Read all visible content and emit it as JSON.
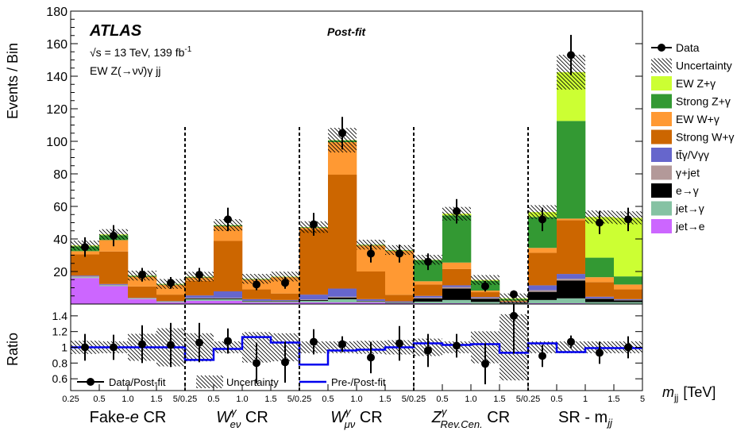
{
  "chart_data": {
    "type": "bar",
    "stacked": true,
    "top_panel": {
      "ylabel": "Events / Bin",
      "ylim": [
        0,
        180
      ],
      "yticks": [
        20,
        40,
        60,
        80,
        100,
        120,
        140,
        160,
        180
      ]
    },
    "ratio_panel": {
      "ylabel": "Ratio",
      "ylim": [
        0.45,
        1.55
      ],
      "yticks": [
        "0.6",
        "0.8",
        "1",
        "1.2",
        "1.4"
      ],
      "yticks_values": [
        0.6,
        0.8,
        1.0,
        1.2,
        1.4
      ],
      "legend": [
        "Data/Post-fit",
        "Uncertainty",
        "Pre-/Post-fit"
      ]
    },
    "annotations": {
      "experiment": "ATLAS",
      "energy": "√s = 13 TeV, 139 fb",
      "lumi_exp": "-1",
      "channel": "EW Z(→νν̄)γ jj",
      "fit_label": "Post-fit"
    },
    "xlabel": "m",
    "xlabel_sub": "jj",
    "xlabel_unit": "[TeV]",
    "x_tick_labels": [
      "0.25",
      "0.5",
      "1.0",
      "1.5",
      "5/0.25",
      "0.5",
      "1.0",
      "1.5",
      "5/0.25",
      "0.5",
      "1.0",
      "1.5",
      "5/0.25",
      "0.5",
      "1.0",
      "1.5",
      "5/0.25",
      "0.5",
      "1",
      "1.5",
      "5"
    ],
    "regions": [
      {
        "name": "Fake-e CR",
        "base": "Fake-",
        "italic": "e",
        "suffix": " CR"
      },
      {
        "name": "Wγ eν CR",
        "base": "W",
        "sup": "γ",
        "sub": "eν",
        "suffix": " CR"
      },
      {
        "name": "Wγ μν CR",
        "base": "W",
        "sup": "γ",
        "sub": "μν",
        "suffix": " CR"
      },
      {
        "name": "Zγ Rev.Cen. CR",
        "base": "Z",
        "sup": "γ",
        "sub": "Rev.Cen.",
        "suffix": " CR"
      },
      {
        "name": "SR - mjj",
        "base": "SR - m",
        "sub": "jj",
        "suffix": ""
      }
    ],
    "series_names": [
      "Data",
      "Uncertainty",
      "EW Z+γ",
      "Strong Z+γ",
      "EW W+γ",
      "Strong W+γ",
      "tt̄γ/Vγγ",
      "γ+jet",
      "e→γ",
      "jet→γ",
      "jet→e"
    ],
    "colors": {
      "ew_z": "#ccff33",
      "strong_z": "#339933",
      "ew_w": "#ff9933",
      "strong_w": "#cc6600",
      "ttg": "#6666cc",
      "gjet": "#b39999",
      "e_to_g": "#000000",
      "jet_to_g": "#85c2a3",
      "jet_to_e": "#cc66ff",
      "prefit_line": "#0000ee"
    },
    "stack_order": [
      "jet_to_e",
      "jet_to_g",
      "e_to_g",
      "gjet",
      "ttg",
      "strong_w",
      "ew_w",
      "strong_z",
      "ew_z"
    ],
    "bins": [
      {
        "jet_to_e": 16,
        "jet_to_g": 0.5,
        "e_to_g": 0,
        "gjet": 0.5,
        "ttg": 0.5,
        "strong_w": 13,
        "ew_w": 2,
        "strong_z": 3,
        "ew_z": 0.5,
        "data": 35,
        "data_err": 6,
        "ratio": 1.0,
        "ratio_err": 0.17,
        "prefit": 1.0
      },
      {
        "jet_to_e": 11,
        "jet_to_g": 0.5,
        "e_to_g": 0,
        "gjet": 0.3,
        "ttg": 0.5,
        "strong_w": 20,
        "ew_w": 7,
        "strong_z": 3,
        "ew_z": 0.5,
        "data": 42,
        "data_err": 6.5,
        "ratio": 1.0,
        "ratio_err": 0.16,
        "prefit": 1.0
      },
      {
        "jet_to_e": 3,
        "jet_to_g": 0.3,
        "e_to_g": 0,
        "gjet": 0.2,
        "ttg": 0.3,
        "strong_w": 7,
        "ew_w": 6,
        "strong_z": 0.5,
        "ew_z": 0.2,
        "data": 18,
        "data_err": 4.2,
        "ratio": 1.04,
        "ratio_err": 0.24,
        "prefit": 1.0
      },
      {
        "jet_to_e": 1,
        "jet_to_g": 0.3,
        "e_to_g": 0,
        "gjet": 0.2,
        "ttg": 0.3,
        "strong_w": 4,
        "ew_w": 6,
        "strong_z": 0.3,
        "ew_z": 0.3,
        "data": 13,
        "data_err": 3.6,
        "ratio": 1.03,
        "ratio_err": 0.28,
        "prefit": 1.0
      },
      {
        "jet_to_e": 2,
        "jet_to_g": 1,
        "e_to_g": 0.5,
        "gjet": 0.3,
        "ttg": 1.5,
        "strong_w": 9,
        "ew_w": 2,
        "strong_z": 0.3,
        "ew_z": 0.2,
        "data": 18,
        "data_err": 4.2,
        "ratio": 1.06,
        "ratio_err": 0.25,
        "prefit": 0.84
      },
      {
        "jet_to_e": 2,
        "jet_to_g": 1,
        "e_to_g": 0.5,
        "gjet": 0.3,
        "ttg": 4,
        "strong_w": 31,
        "ew_w": 9,
        "strong_z": 0.5,
        "ew_z": 0.2,
        "data": 52,
        "data_err": 7.2,
        "ratio": 1.08,
        "ratio_err": 0.16,
        "prefit": 0.98
      },
      {
        "jet_to_e": 1,
        "jet_to_g": 0.5,
        "e_to_g": 0.3,
        "gjet": 0.2,
        "ttg": 1,
        "strong_w": 6,
        "ew_w": 6,
        "strong_z": 0.3,
        "ew_z": 0.2,
        "data": 12,
        "data_err": 3.5,
        "ratio": 0.8,
        "ratio_err": 0.26,
        "prefit": 1.13
      },
      {
        "jet_to_e": 1,
        "jet_to_g": 0.5,
        "e_to_g": 0.3,
        "gjet": 0.2,
        "ttg": 0.5,
        "strong_w": 4,
        "ew_w": 10,
        "strong_z": 0.2,
        "ew_z": 0.2,
        "data": 13,
        "data_err": 3.6,
        "ratio": 0.81,
        "ratio_err": 0.26,
        "prefit": 1.06
      },
      {
        "jet_to_e": 1,
        "jet_to_g": 1,
        "e_to_g": 0.5,
        "gjet": 0.3,
        "ttg": 3,
        "strong_w": 40,
        "ew_w": 1,
        "strong_z": 0.3,
        "ew_z": 0.2,
        "data": 49,
        "data_err": 7,
        "ratio": 1.07,
        "ratio_err": 0.16,
        "prefit": 0.78
      },
      {
        "jet_to_e": 1,
        "jet_to_g": 2,
        "e_to_g": 1,
        "gjet": 0.5,
        "ttg": 5,
        "strong_w": 70,
        "ew_w": 20,
        "strong_z": 1,
        "ew_z": 0.2,
        "data": 105,
        "data_err": 10,
        "ratio": 1.04,
        "ratio_err": 0.1,
        "prefit": 0.96
      },
      {
        "jet_to_e": 1,
        "jet_to_g": 0.5,
        "e_to_g": 0.3,
        "gjet": 0.2,
        "ttg": 1,
        "strong_w": 17,
        "ew_w": 16,
        "strong_z": 0.3,
        "ew_z": 0.2,
        "data": 31,
        "data_err": 5.5,
        "ratio": 0.87,
        "ratio_err": 0.2,
        "prefit": 0.97
      },
      {
        "jet_to_e": 0.5,
        "jet_to_g": 0.3,
        "e_to_g": 0.2,
        "gjet": 0.2,
        "ttg": 0.5,
        "strong_w": 4,
        "ew_w": 27,
        "strong_z": 0.3,
        "ew_z": 0.2,
        "data": 31,
        "data_err": 5.5,
        "ratio": 1.05,
        "ratio_err": 0.22,
        "prefit": 1.0
      },
      {
        "jet_to_e": 0.5,
        "jet_to_g": 1,
        "e_to_g": 2,
        "gjet": 0.5,
        "ttg": 1,
        "strong_w": 7,
        "ew_w": 2,
        "strong_z": 13,
        "ew_z": 0.2,
        "data": 26,
        "data_err": 5.1,
        "ratio": 0.96,
        "ratio_err": 0.21,
        "prefit": 1.05
      },
      {
        "jet_to_e": 0.5,
        "jet_to_g": 2,
        "e_to_g": 7,
        "gjet": 1,
        "ttg": 1,
        "strong_w": 10,
        "ew_w": 4,
        "strong_z": 29,
        "ew_z": 1,
        "data": 57,
        "data_err": 7.5,
        "ratio": 1.02,
        "ratio_err": 0.15,
        "prefit": 1.03
      },
      {
        "jet_to_e": 0.3,
        "jet_to_g": 1,
        "e_to_g": 2,
        "gjet": 0.5,
        "ttg": 0.5,
        "strong_w": 3,
        "ew_w": 1,
        "strong_z": 6,
        "ew_z": 0.5,
        "data": 11,
        "data_err": 3.3,
        "ratio": 0.79,
        "ratio_err": 0.26,
        "prefit": 1.04
      },
      {
        "jet_to_e": 0.1,
        "jet_to_g": 0.3,
        "e_to_g": 0.5,
        "gjet": 0.3,
        "ttg": 0.2,
        "strong_w": 0.5,
        "ew_w": 0.2,
        "strong_z": 1,
        "ew_z": 0.4,
        "data": 6,
        "data_err": 2.4,
        "ratio": 1.4,
        "ratio_err": 0.48,
        "prefit": 0.93
      },
      {
        "jet_to_e": 0.5,
        "jet_to_g": 2,
        "e_to_g": 5,
        "gjet": 1,
        "ttg": 3,
        "strong_w": 20,
        "ew_w": 3,
        "strong_z": 19,
        "ew_z": 3,
        "data": 52,
        "data_err": 7.2,
        "ratio": 0.89,
        "ratio_err": 0.14,
        "prefit": 1.05
      },
      {
        "jet_to_e": 0.5,
        "jet_to_g": 3,
        "e_to_g": 11,
        "gjet": 1,
        "ttg": 3,
        "strong_w": 33,
        "ew_w": 1,
        "strong_z": 60,
        "ew_z": 30,
        "data": 153,
        "data_err": 12.4,
        "ratio": 1.07,
        "ratio_err": 0.08,
        "prefit": 0.94
      },
      {
        "jet_to_e": 0.2,
        "jet_to_g": 1,
        "e_to_g": 2,
        "gjet": 0.3,
        "ttg": 1,
        "strong_w": 9,
        "ew_w": 3,
        "strong_z": 12,
        "ew_z": 25,
        "data": 50,
        "data_err": 7,
        "ratio": 0.93,
        "ratio_err": 0.14,
        "prefit": 0.99
      },
      {
        "jet_to_e": 0.2,
        "jet_to_g": 1,
        "e_to_g": 1,
        "gjet": 0.3,
        "ttg": 0.5,
        "strong_w": 6,
        "ew_w": 3,
        "strong_z": 5,
        "ew_z": 36,
        "data": 52,
        "data_err": 7.2,
        "ratio": 1.0,
        "ratio_err": 0.14,
        "prefit": 0.99
      }
    ]
  }
}
